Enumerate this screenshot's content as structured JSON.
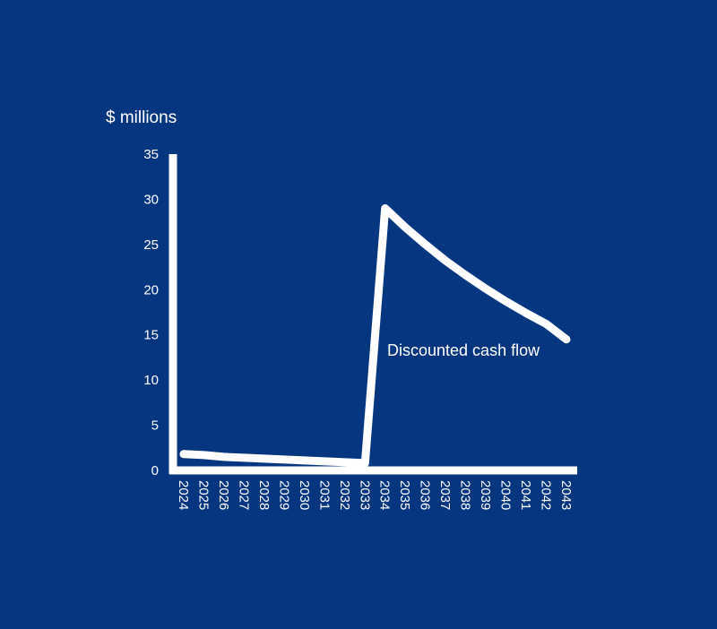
{
  "chart_data": {
    "type": "line",
    "ylabel": "$ millions",
    "ylim": [
      0,
      35
    ],
    "yticks": [
      0,
      5,
      10,
      15,
      20,
      25,
      30,
      35
    ],
    "categories": [
      "2024",
      "2025",
      "2026",
      "2027",
      "2028",
      "2029",
      "2030",
      "2031",
      "2032",
      "2033",
      "2034",
      "2035",
      "2036",
      "2037",
      "2038",
      "2039",
      "2040",
      "2041",
      "2042",
      "2043"
    ],
    "series": [
      {
        "name": "Discounted cash flow",
        "values": [
          1.8,
          1.7,
          1.5,
          1.4,
          1.3,
          1.2,
          1.1,
          1.0,
          0.9,
          0.8,
          29.0,
          26.9,
          25.0,
          23.2,
          21.6,
          20.1,
          18.7,
          17.4,
          16.2,
          14.5
        ],
        "color": "#ffffff"
      }
    ],
    "grid": false,
    "background": "#063680"
  }
}
